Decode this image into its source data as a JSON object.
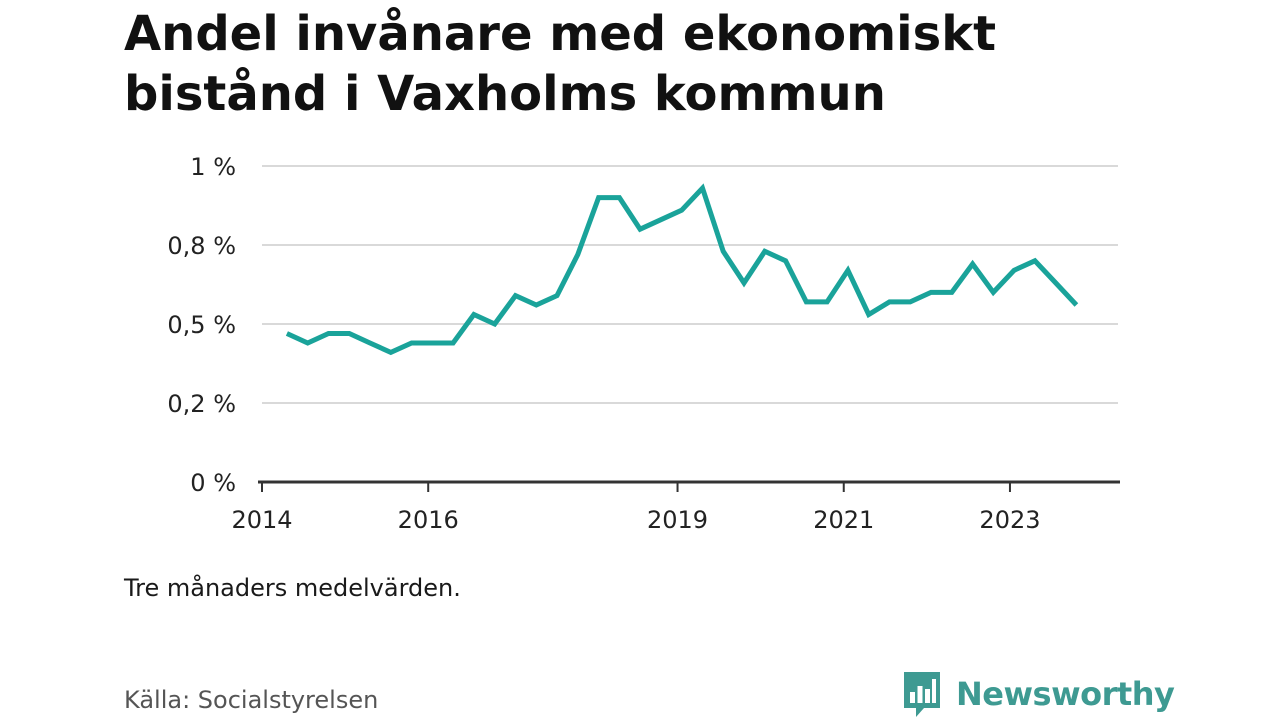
{
  "header": {
    "title": "Andel invånare med ekonomiskt bistånd i Vaxholms kommun"
  },
  "footer": {
    "note": "Tre månaders medelvärden.",
    "source": "Källa: Socialstyrelsen",
    "brand": "Newsworthy"
  },
  "colors": {
    "line": "#1aa39a",
    "grid": "#d9d9d9",
    "axis": "#333333",
    "brand": "#3e9a92"
  },
  "chart_data": {
    "type": "line",
    "title": "Andel invånare med ekonomiskt bistånd i Vaxholms kommun",
    "xlabel": "",
    "ylabel": "",
    "xlim": [
      2014.0,
      2024.3
    ],
    "ylim": [
      0,
      1.0
    ],
    "grid": true,
    "x_ticks": [
      {
        "value": 2014,
        "label": "2014"
      },
      {
        "value": 2016,
        "label": "2016"
      },
      {
        "value": 2019,
        "label": "2019"
      },
      {
        "value": 2021,
        "label": "2021"
      },
      {
        "value": 2023,
        "label": "2023"
      }
    ],
    "y_ticks": [
      {
        "value": 0,
        "label": "0 %"
      },
      {
        "value": 0.25,
        "label": "0,2 %"
      },
      {
        "value": 0.5,
        "label": "0,5 %"
      },
      {
        "value": 0.75,
        "label": "0,8 %"
      },
      {
        "value": 1.0,
        "label": "1 %"
      }
    ],
    "series": [
      {
        "x": [
          2014.3,
          2014.55,
          2014.8,
          2015.05,
          2015.3,
          2015.55,
          2015.8,
          2016.05,
          2016.3,
          2016.55,
          2016.8,
          2017.05,
          2017.3,
          2017.55,
          2017.8,
          2018.05,
          2018.3,
          2018.55,
          2018.8,
          2019.05,
          2019.3,
          2019.55,
          2019.8,
          2020.05,
          2020.3,
          2020.55,
          2020.8,
          2021.05,
          2021.3,
          2021.55,
          2021.8,
          2022.05,
          2022.3,
          2022.55,
          2022.8,
          2023.05,
          2023.3,
          2023.55,
          2023.8
        ],
        "values": [
          0.47,
          0.44,
          0.47,
          0.47,
          0.44,
          0.41,
          0.44,
          0.44,
          0.44,
          0.53,
          0.5,
          0.59,
          0.56,
          0.59,
          0.72,
          0.9,
          0.9,
          0.8,
          0.83,
          0.86,
          0.93,
          0.73,
          0.63,
          0.73,
          0.7,
          0.57,
          0.57,
          0.67,
          0.53,
          0.57,
          0.57,
          0.6,
          0.6,
          0.69,
          0.6,
          0.67,
          0.7,
          0.63,
          0.56
        ]
      }
    ]
  }
}
